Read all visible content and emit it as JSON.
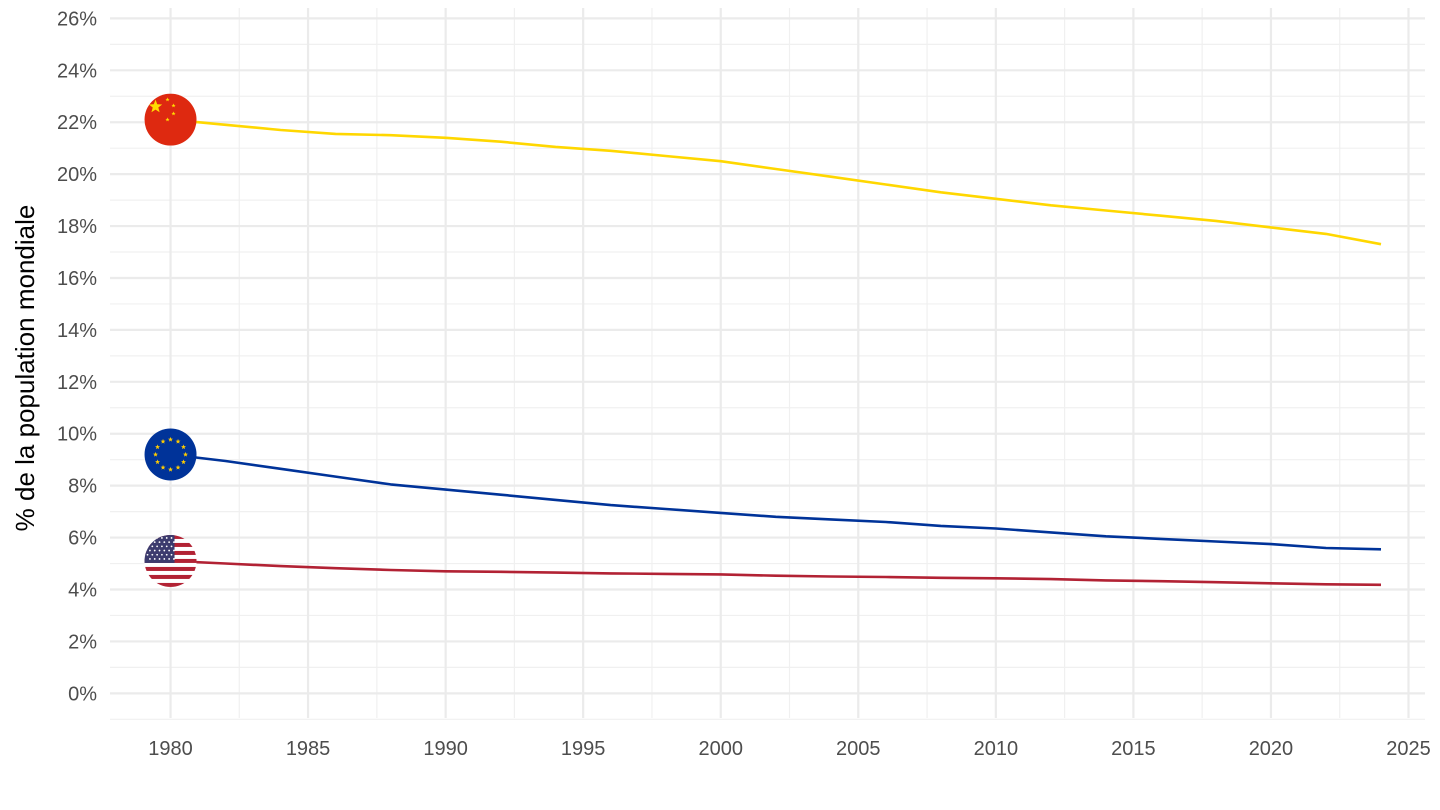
{
  "chart_data": {
    "type": "line",
    "title": "",
    "xlabel": "",
    "ylabel": "% de la population mondiale",
    "xlim": [
      1977.8,
      2025.6
    ],
    "ylim": [
      -0.95,
      26.4
    ],
    "x_ticks": [
      1980,
      1985,
      1990,
      1995,
      2000,
      2005,
      2010,
      2015,
      2020,
      2025
    ],
    "x_tick_labels": [
      "1980",
      "1985",
      "1990",
      "1995",
      "2000",
      "2005",
      "2010",
      "2015",
      "2020",
      "2025"
    ],
    "y_ticks": [
      0,
      2,
      4,
      6,
      8,
      10,
      12,
      14,
      16,
      18,
      20,
      22,
      24,
      26
    ],
    "y_tick_labels": [
      "0%",
      "2%",
      "4%",
      "6%",
      "8%",
      "10%",
      "12%",
      "14%",
      "16%",
      "18%",
      "20%",
      "22%",
      "24%",
      "26%"
    ],
    "grid": true,
    "legend": "none (flag icons at the start of each line)",
    "series": [
      {
        "flag": "china-flag-icon",
        "color": "#ffd700",
        "x": [
          1980,
          1982,
          1984,
          1986,
          1988,
          1990,
          1992,
          1994,
          1996,
          1998,
          2000,
          2002,
          2004,
          2006,
          2008,
          2010,
          2012,
          2014,
          2016,
          2018,
          2020,
          2022,
          2024
        ],
        "values": [
          22.1,
          21.9,
          21.7,
          21.55,
          21.5,
          21.4,
          21.25,
          21.05,
          20.9,
          20.7,
          20.5,
          20.2,
          19.9,
          19.6,
          19.3,
          19.05,
          18.8,
          18.6,
          18.4,
          18.2,
          17.95,
          17.7,
          17.3
        ]
      },
      {
        "flag": "eu-flag-icon",
        "color": "#003399",
        "x": [
          1980,
          1982,
          1984,
          1986,
          1988,
          1990,
          1992,
          1994,
          1996,
          1998,
          2000,
          2002,
          2004,
          2006,
          2008,
          2010,
          2012,
          2014,
          2016,
          2018,
          2020,
          2022,
          2024
        ],
        "values": [
          9.2,
          8.95,
          8.65,
          8.35,
          8.05,
          7.85,
          7.65,
          7.45,
          7.25,
          7.1,
          6.95,
          6.8,
          6.7,
          6.6,
          6.45,
          6.35,
          6.2,
          6.05,
          5.95,
          5.85,
          5.75,
          5.6,
          5.55
        ]
      },
      {
        "flag": "usa-flag-icon",
        "color": "#b22234",
        "x": [
          1980,
          1982,
          1984,
          1986,
          1988,
          1990,
          1992,
          1994,
          1996,
          1998,
          2000,
          2002,
          2004,
          2006,
          2008,
          2010,
          2012,
          2014,
          2016,
          2018,
          2020,
          2022,
          2024
        ],
        "values": [
          5.1,
          5.0,
          4.9,
          4.82,
          4.75,
          4.7,
          4.68,
          4.65,
          4.62,
          4.6,
          4.58,
          4.53,
          4.5,
          4.48,
          4.45,
          4.43,
          4.4,
          4.35,
          4.32,
          4.28,
          4.24,
          4.2,
          4.18
        ]
      }
    ]
  }
}
